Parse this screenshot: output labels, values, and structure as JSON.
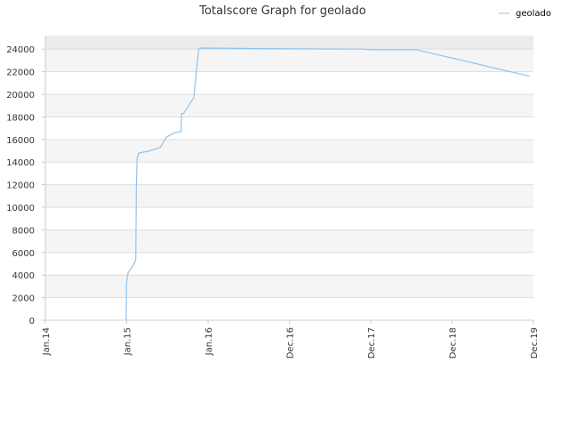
{
  "chart_data": {
    "type": "line",
    "title": "Totalscore Graph for geolado",
    "xlabel": "",
    "ylabel": "",
    "grid": true,
    "legend_position": "top-right",
    "x_ticks": [
      "Jan.14",
      "Jan.15",
      "Jan.16",
      "Dec.16",
      "Dec.17",
      "Dec.18",
      "Dec.19"
    ],
    "y_ticks": [
      0,
      2000,
      4000,
      6000,
      8000,
      10000,
      12000,
      14000,
      16000,
      18000,
      20000,
      22000,
      24000
    ],
    "ylim": [
      0,
      25200
    ],
    "xlim": [
      "2014-01-01",
      "2019-12-01"
    ],
    "colors": {
      "series": "#8fc3ef",
      "band_dark": "#ececec",
      "band_light": "#f5f5f5",
      "grid": "#dddddd"
    },
    "series": [
      {
        "name": "geolado",
        "points": [
          [
            "2014-12-25",
            0
          ],
          [
            "2014-12-26",
            3300
          ],
          [
            "2015-01-02",
            4200
          ],
          [
            "2015-01-20",
            4700
          ],
          [
            "2015-02-05",
            5300
          ],
          [
            "2015-02-08",
            12000
          ],
          [
            "2015-02-11",
            14300
          ],
          [
            "2015-02-18",
            14800
          ],
          [
            "2015-04-10",
            15000
          ],
          [
            "2015-05-25",
            15300
          ],
          [
            "2015-06-20",
            16200
          ],
          [
            "2015-07-25",
            16600
          ],
          [
            "2015-08-25",
            16700
          ],
          [
            "2015-08-27",
            18300
          ],
          [
            "2015-09-05",
            18300
          ],
          [
            "2015-10-20",
            19700
          ],
          [
            "2015-11-10",
            23900
          ],
          [
            "2015-11-15",
            24100
          ],
          [
            "2016-08-01",
            24050
          ],
          [
            "2017-11-01",
            24000
          ],
          [
            "2017-12-15",
            23950
          ],
          [
            "2018-07-01",
            23950
          ],
          [
            "2019-11-15",
            21600
          ]
        ]
      }
    ]
  }
}
